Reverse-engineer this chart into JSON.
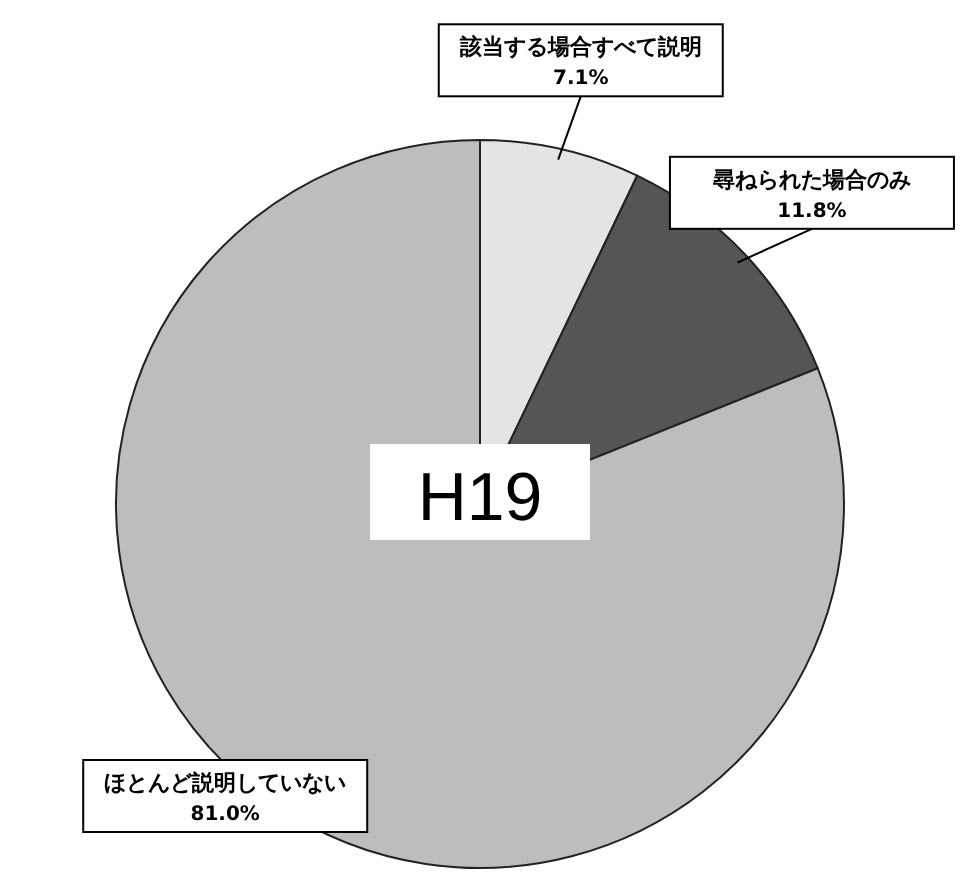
{
  "chart_data": {
    "type": "pie",
    "title": "H19",
    "categories": [
      "該当する場合すべて説明",
      "尋ねられた場合のみ",
      "ほとんど説明していない"
    ],
    "values": [
      7.1,
      11.8,
      81.0
    ],
    "value_labels": [
      "7.1%",
      "11.8%",
      "81.0%"
    ],
    "colors": [
      "#e4e4e4",
      "#555555",
      "#bdbdbd"
    ]
  }
}
